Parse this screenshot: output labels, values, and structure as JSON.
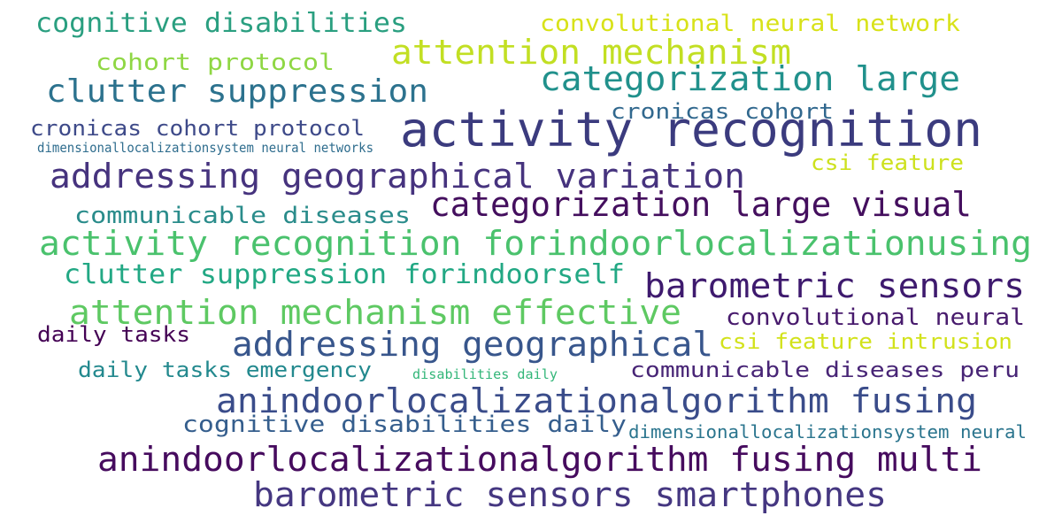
{
  "words": [
    {
      "text": "cognitive disabilities",
      "color": "#2a9f80"
    },
    {
      "text": "convolutional neural network",
      "color": "#d8e219"
    },
    {
      "text": "attention mechanism",
      "color": "#c2df23"
    },
    {
      "text": "cohort protocol",
      "color": "#8fd744"
    },
    {
      "text": "categorization large",
      "color": "#21918c"
    },
    {
      "text": "clutter suppression",
      "color": "#2c728e"
    },
    {
      "text": "cronicas cohort",
      "color": "#31688e"
    },
    {
      "text": "activity recognition",
      "color": "#3b3b7e"
    },
    {
      "text": "cronicas cohort protocol",
      "color": "#3e4a89"
    },
    {
      "text": "dimensionallocalizationsystem neural networks",
      "color": "#2f6d8e"
    },
    {
      "text": "csi feature",
      "color": "#cde11d"
    },
    {
      "text": "addressing geographical variation",
      "color": "#46337e"
    },
    {
      "text": "categorization large visual",
      "color": "#440f5e"
    },
    {
      "text": "communicable diseases",
      "color": "#2a8c8b"
    },
    {
      "text": "activity recognition forindoorlocalizationusing",
      "color": "#4ac26d"
    },
    {
      "text": "clutter suppression forindoorself",
      "color": "#22a884"
    },
    {
      "text": "barometric sensors",
      "color": "#3e1a6e"
    },
    {
      "text": "attention mechanism effective",
      "color": "#5ec962"
    },
    {
      "text": "convolutional neural",
      "color": "#481b6d"
    },
    {
      "text": "daily tasks",
      "color": "#440154"
    },
    {
      "text": "addressing geographical",
      "color": "#38568c"
    },
    {
      "text": "csi feature intrusion",
      "color": "#d2e21b"
    },
    {
      "text": "daily tasks emergency",
      "color": "#23898e"
    },
    {
      "text": "disabilities daily",
      "color": "#33b679"
    },
    {
      "text": "communicable diseases peru",
      "color": "#482576"
    },
    {
      "text": "anindoorlocalizationalgorithm fusing",
      "color": "#3a4c8a"
    },
    {
      "text": "cognitive disabilities daily",
      "color": "#355e8d"
    },
    {
      "text": "dimensionallocalizationsystem neural",
      "color": "#2b758e"
    },
    {
      "text": "anindoorlocalizationalgorithm fusing multi",
      "color": "#460b5e"
    },
    {
      "text": "barometric sensors smartphones",
      "color": "#453781"
    }
  ]
}
